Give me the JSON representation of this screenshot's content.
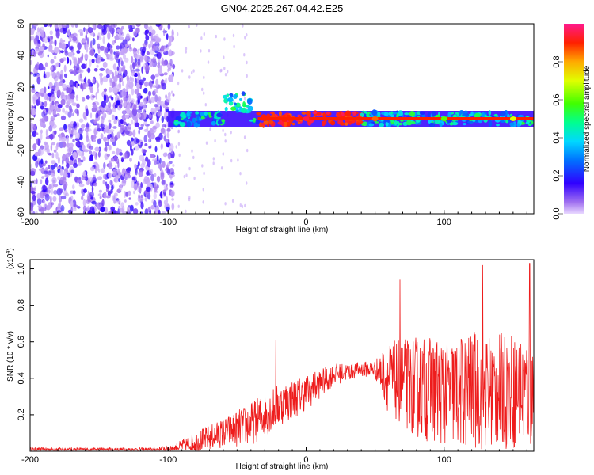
{
  "figure_title": "GN04.2025.267.04.42.E25",
  "colors": {
    "signal_line": "#ee1c1c",
    "spectrum_purple": "#7a1fe6",
    "frame": "#000000"
  },
  "chart_data": [
    {
      "type": "heatmap",
      "name": "spectrogram",
      "xlabel": "Height of straight line (km)",
      "ylabel": "Frequency (Hz)",
      "xlim": [
        -200,
        165
      ],
      "ylim": [
        -60,
        60
      ],
      "x_ticks": [
        -200,
        -100,
        0,
        100
      ],
      "y_ticks": [
        60,
        40,
        20,
        0,
        -20,
        -40,
        -60
      ],
      "noise_region_x": [
        -200,
        -100
      ],
      "band_center_hz": 0,
      "features": [
        {
          "x": -55,
          "y": 12,
          "amp": 0.35
        },
        {
          "x": -45,
          "y": 5,
          "amp": 0.45
        },
        {
          "x": -30,
          "y": 0,
          "amp": 0.9
        },
        {
          "x": 0,
          "y": 0,
          "amp": 0.95
        },
        {
          "x": 50,
          "y": 0,
          "amp": 0.85
        },
        {
          "x": 100,
          "y": 0,
          "amp": 0.6
        },
        {
          "x": 150,
          "y": 0,
          "amp": 0.7
        }
      ],
      "colorbar": {
        "label": "Normalized spectral amplitude",
        "range": [
          0,
          1
        ],
        "ticks": [
          "0.0",
          "0.2",
          "0.4",
          "0.6",
          "0.8"
        ]
      }
    },
    {
      "type": "line",
      "name": "snr",
      "xlabel": "Height of straight line (km)",
      "ylabel": "SNR (10 * v/v)",
      "y_scale_label": "(x10",
      "y_scale_exp": "4",
      "xlim": [
        -200,
        165
      ],
      "ylim": [
        0,
        1.05
      ],
      "x_ticks": [
        -200,
        -100,
        0,
        100
      ],
      "y_ticks": [
        "0.2",
        "0.4",
        "0.6",
        "0.8",
        "1.0"
      ],
      "envelope": {
        "x": [
          -200,
          -110,
          -95,
          -80,
          -60,
          -40,
          -20,
          0,
          20,
          40,
          50,
          60,
          80,
          100,
          120,
          140,
          160,
          165
        ],
        "base": [
          0.01,
          0.01,
          0.02,
          0.05,
          0.1,
          0.15,
          0.25,
          0.32,
          0.42,
          0.45,
          0.45,
          0.4,
          0.35,
          0.33,
          0.33,
          0.33,
          0.33,
          0.33
        ],
        "spread": [
          0.01,
          0.01,
          0.02,
          0.06,
          0.08,
          0.12,
          0.12,
          0.1,
          0.06,
          0.04,
          0.05,
          0.2,
          0.28,
          0.3,
          0.33,
          0.32,
          0.32,
          0.35
        ]
      },
      "peaks": [
        {
          "x": -22,
          "y": 0.61
        },
        {
          "x": 68,
          "y": 0.94
        },
        {
          "x": 128,
          "y": 1.02
        },
        {
          "x": 162,
          "y": 1.03
        }
      ]
    }
  ]
}
